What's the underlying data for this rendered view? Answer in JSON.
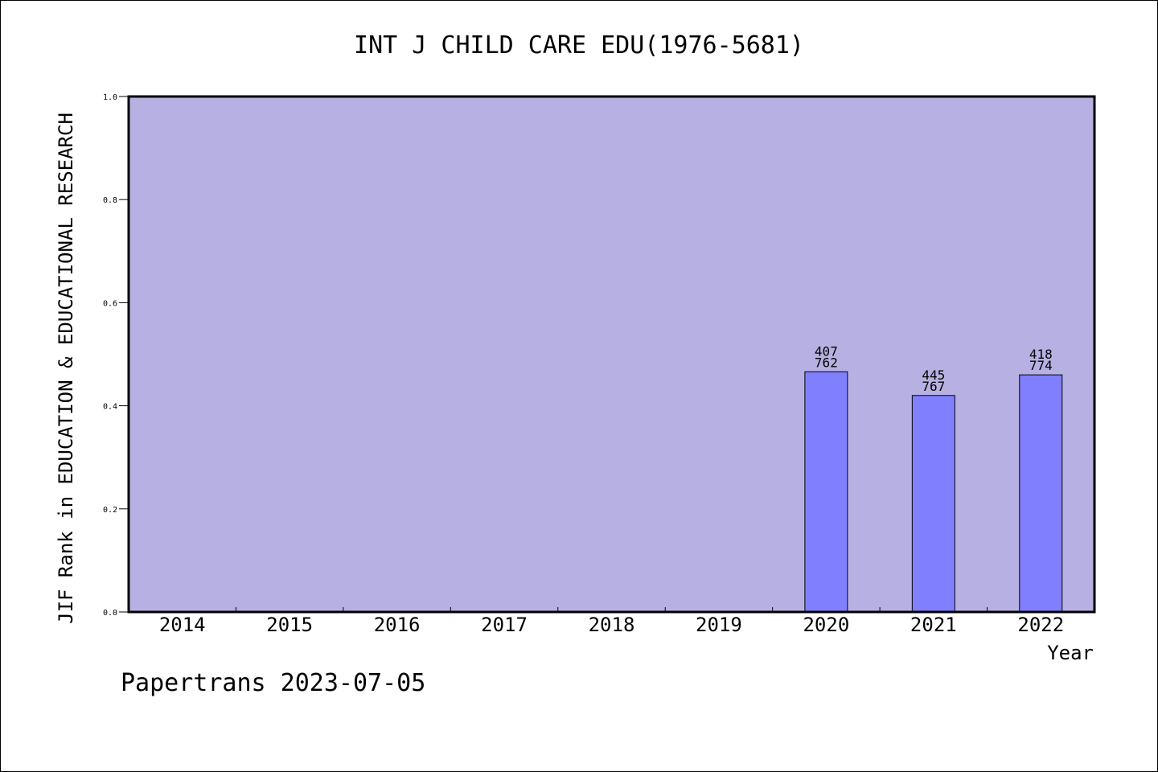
{
  "chart_data": {
    "type": "bar",
    "title": "INT J CHILD CARE EDU(1976-5681)",
    "xlabel": "Year",
    "ylabel": "JIF Rank in EDUCATION & EDUCATIONAL RESEARCH",
    "ylim": [
      0,
      1.0
    ],
    "yticks": [
      "0.0",
      "0.2",
      "0.4",
      "0.6",
      "0.8",
      "1.0"
    ],
    "categories": [
      "2014",
      "2015",
      "2016",
      "2017",
      "2018",
      "2019",
      "2020",
      "2021",
      "2022"
    ],
    "values": [
      null,
      null,
      null,
      null,
      null,
      null,
      0.466,
      0.42,
      0.46
    ],
    "labels": [
      null,
      null,
      null,
      null,
      null,
      null,
      {
        "rank": "407",
        "total": "762"
      },
      {
        "rank": "445",
        "total": "767"
      },
      {
        "rank": "418",
        "total": "774"
      }
    ],
    "grid": false,
    "colors": {
      "plot_bg": "#b7b1e3",
      "bar": "#8080ff",
      "bar_edge": "#000000"
    }
  },
  "footer": "Papertrans 2023-07-05"
}
